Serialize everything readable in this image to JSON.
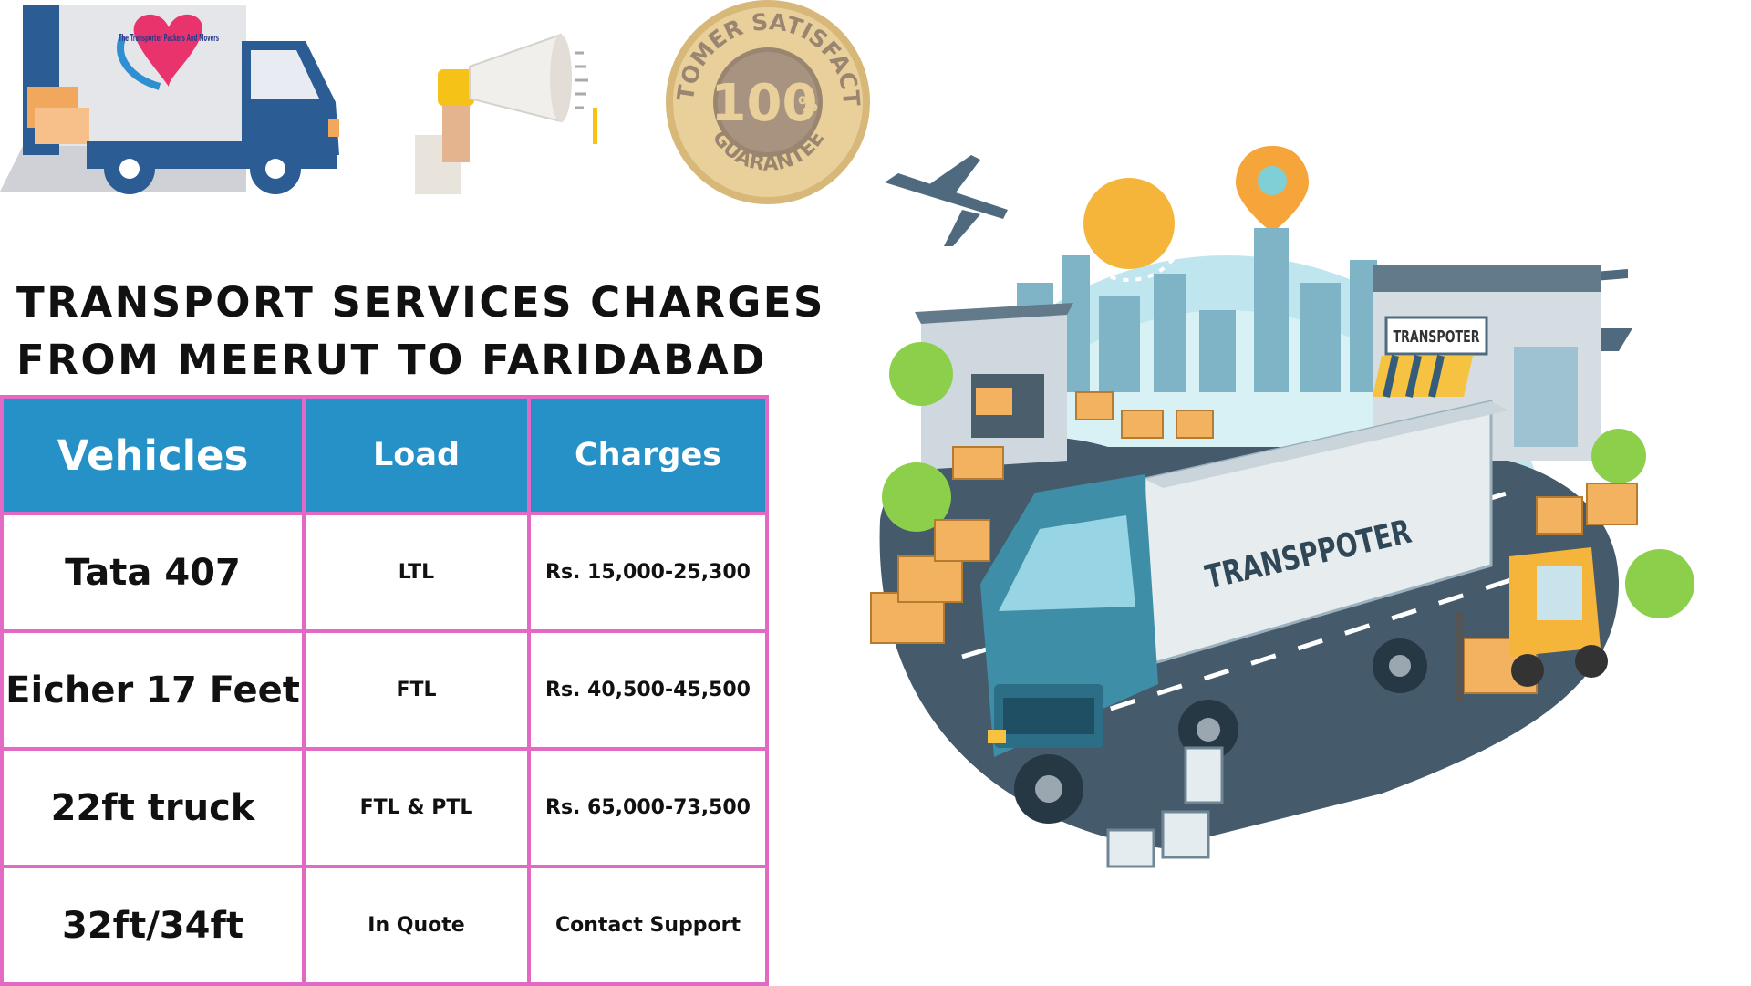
{
  "logo": {
    "brand_text": "The Transporter Packers And Movers"
  },
  "badge": {
    "top_text": "CUSTOMER SATISFACTION",
    "number": "100",
    "percent": "%",
    "bottom_text": "GUARANTEE"
  },
  "heading": {
    "line1": "TRANSPORT SERVICES CHARGES",
    "line2": "FROM MEERUT TO FARIDABAD"
  },
  "table": {
    "headers": [
      "Vehicles",
      "Load",
      "Charges"
    ],
    "rows": [
      {
        "vehicle": "Tata 407",
        "load": "LTL",
        "charges": "Rs. 15,000-25,300"
      },
      {
        "vehicle": "Eicher 17 Feet",
        "load": "FTL",
        "charges": "Rs. 40,500-45,500"
      },
      {
        "vehicle": "22ft truck",
        "load": "FTL & PTL",
        "charges": "Rs. 65,000-73,500"
      },
      {
        "vehicle": "32ft/34ft",
        "load": "In Quote",
        "charges": "Contact Support"
      }
    ]
  },
  "illustration": {
    "truck_text": "TRANSPPOTER",
    "shop_sign": "TRANSPOTER"
  },
  "colors": {
    "table_header": "#2591c7",
    "table_border": "#e36ac4",
    "badge_gold": "#c9a560",
    "truck_blue": "#3f8ea8"
  }
}
